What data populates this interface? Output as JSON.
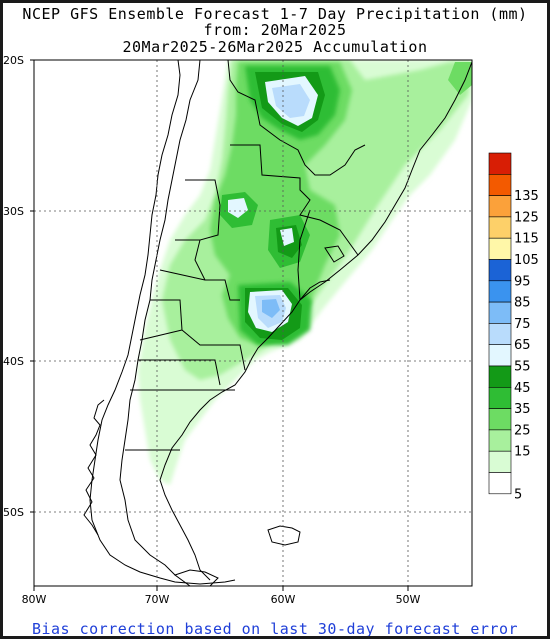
{
  "title": {
    "line1": "NCEP GFS Ensemble Forecast 1-7 Day Precipitation (mm)",
    "line2": "from: 20Mar2025",
    "line3": "20Mar2025-26Mar2025 Accumulation"
  },
  "footer": "Bias correction based on last 30-day forecast error",
  "map": {
    "lat_labels": [
      "20S",
      "30S",
      "40S",
      "50S"
    ],
    "lon_labels": [
      "80W",
      "70W",
      "60W",
      "50W"
    ]
  },
  "legend": {
    "levels": [
      {
        "label": "",
        "color": "#d81e05"
      },
      {
        "label": "135",
        "color": "#f35a00"
      },
      {
        "label": "125",
        "color": "#fba13a"
      },
      {
        "label": "115",
        "color": "#fdd069"
      },
      {
        "label": "105",
        "color": "#fff7a8"
      },
      {
        "label": "95",
        "color": "#1b63d6"
      },
      {
        "label": "85",
        "color": "#3a93ef"
      },
      {
        "label": "75",
        "color": "#7dbcf7"
      },
      {
        "label": "65",
        "color": "#b9dcfc"
      },
      {
        "label": "55",
        "color": "#e3f7ff"
      },
      {
        "label": "45",
        "color": "#139a17"
      },
      {
        "label": "35",
        "color": "#2fbd34"
      },
      {
        "label": "25",
        "color": "#6ddc63"
      },
      {
        "label": "15",
        "color": "#a8f09d"
      },
      {
        "label": "",
        "color": "#d9fcd4"
      },
      {
        "label": "5",
        "color": "#ffffff"
      }
    ]
  }
}
